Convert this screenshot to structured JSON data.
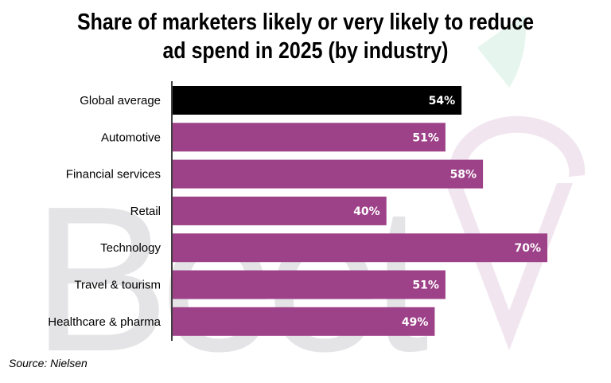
{
  "chart_data": {
    "type": "bar",
    "orientation": "horizontal",
    "title": "Share of marketers likely or very likely to reduce ad spend in 2025 (by industry)",
    "title_lines": [
      "Share of marketers likely or very likely to reduce",
      "ad spend in 2025 (by industry)"
    ],
    "xlabel": "",
    "ylabel": "",
    "categories": [
      "Global average",
      "Automotive",
      "Financial services",
      "Retail",
      "Technology",
      "Travel & tourism",
      "Healthcare & pharma"
    ],
    "values": [
      54,
      51,
      58,
      40,
      70,
      51,
      49
    ],
    "data_labels": [
      "54%",
      "51%",
      "58%",
      "40%",
      "70%",
      "51%",
      "49%"
    ],
    "unit": "%",
    "xlim": [
      0,
      80
    ],
    "grid": false,
    "legend": "none",
    "colors": {
      "highlight": "#000000",
      "default": "#9b3d86",
      "label_text": "#ffffff",
      "axis": "#404040"
    },
    "highlight_index": 0,
    "source": "Source: Nielsen"
  },
  "watermark": {
    "text": "BeetTV",
    "color_letters": "#e4e4e6",
    "color_v": "#f1e6ef",
    "color_leaf": "#e6f6ef"
  }
}
